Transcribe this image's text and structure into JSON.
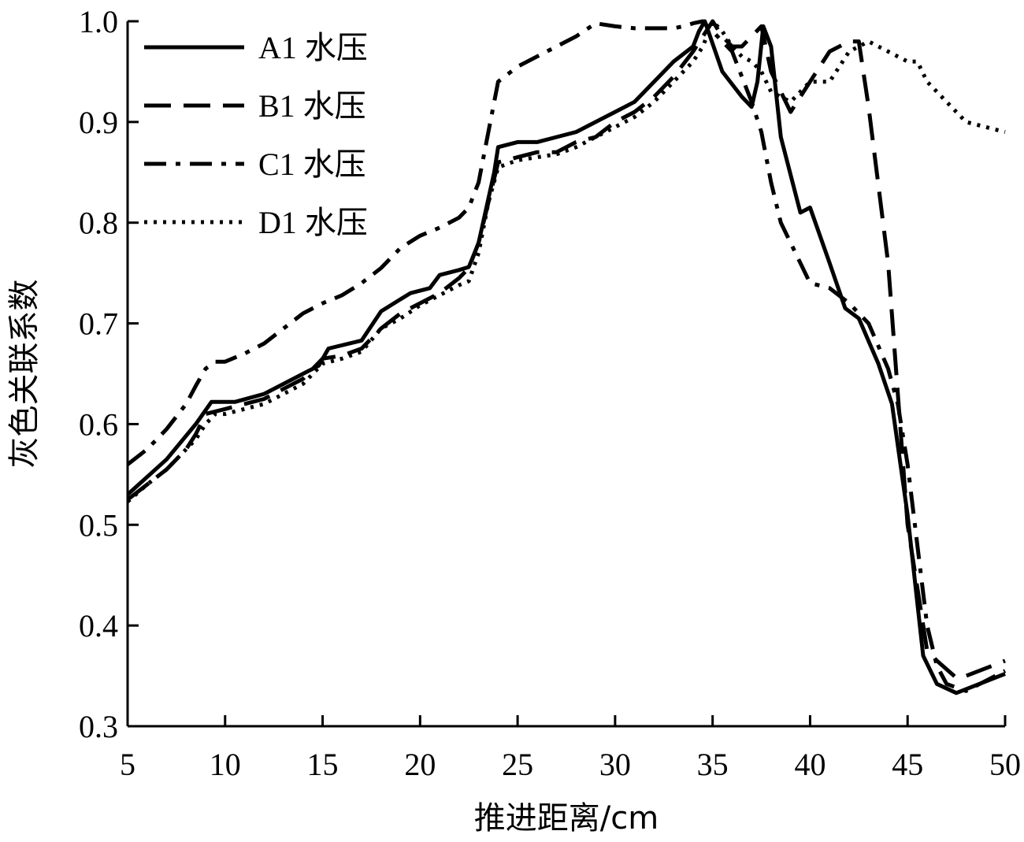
{
  "chart_data": {
    "type": "line",
    "title": "",
    "xlabel": "推进距离/cm",
    "ylabel": "灰色关联系数",
    "xlim": [
      5,
      50
    ],
    "ylim": [
      0.3,
      1.0
    ],
    "xticks": [
      5,
      10,
      15,
      20,
      25,
      30,
      35,
      40,
      45,
      50
    ],
    "yticks": [
      0.3,
      0.4,
      0.5,
      0.6,
      0.7,
      0.8,
      0.9,
      1.0
    ],
    "xtick_labels": [
      "5",
      "10",
      "15",
      "20",
      "25",
      "30",
      "35",
      "40",
      "45",
      "50"
    ],
    "ytick_labels": [
      "0.3",
      "0.4",
      "0.5",
      "0.6",
      "0.7",
      "0.8",
      "0.9",
      "1.0"
    ],
    "grid": false,
    "legend_position": "top-left",
    "series": [
      {
        "name": "A1 水压",
        "style": "solid",
        "x": [
          5,
          7,
          8.5,
          9.3,
          10.5,
          12,
          14,
          14.8,
          15.3,
          17,
          18,
          19.5,
          20.5,
          21,
          22,
          22.5,
          23,
          23.8,
          24,
          25,
          26,
          27,
          28,
          29,
          30,
          31,
          32,
          33,
          34,
          34.3,
          34.6,
          35.5,
          36.5,
          37,
          37.3,
          37.6,
          38,
          38.5,
          39.5,
          40,
          41,
          41.8,
          42.5,
          43.5,
          44.2,
          45,
          45.8,
          46.5,
          47.5,
          50
        ],
        "y": [
          0.53,
          0.565,
          0.6,
          0.622,
          0.622,
          0.63,
          0.65,
          0.658,
          0.675,
          0.683,
          0.712,
          0.73,
          0.735,
          0.748,
          0.753,
          0.756,
          0.78,
          0.85,
          0.875,
          0.88,
          0.88,
          0.885,
          0.89,
          0.9,
          0.91,
          0.92,
          0.94,
          0.96,
          0.975,
          0.99,
          1.0,
          0.95,
          0.925,
          0.915,
          0.94,
          0.995,
          0.975,
          0.885,
          0.81,
          0.815,
          0.76,
          0.715,
          0.705,
          0.66,
          0.62,
          0.51,
          0.37,
          0.342,
          0.333,
          0.352
        ]
      },
      {
        "name": "B1 水压",
        "style": "dashed",
        "x": [
          5,
          6,
          7,
          8,
          8.5,
          9,
          10,
          11,
          12,
          13,
          14,
          15,
          16,
          17,
          18,
          19,
          20,
          21,
          22,
          22.5,
          23,
          23.5,
          24,
          25,
          26,
          27,
          28,
          29,
          30,
          31,
          32,
          33,
          34,
          34.5,
          35,
          35.5,
          36,
          36.5,
          37,
          37.5,
          38,
          39,
          40,
          41,
          42,
          42.5,
          43,
          44,
          45,
          46,
          46.5,
          47.5,
          48,
          50
        ],
        "y": [
          0.525,
          0.54,
          0.555,
          0.575,
          0.59,
          0.61,
          0.615,
          0.62,
          0.625,
          0.635,
          0.645,
          0.665,
          0.668,
          0.675,
          0.695,
          0.71,
          0.72,
          0.73,
          0.745,
          0.755,
          0.78,
          0.82,
          0.86,
          0.865,
          0.87,
          0.87,
          0.88,
          0.885,
          0.9,
          0.91,
          0.925,
          0.945,
          0.97,
          0.985,
          1.0,
          0.985,
          0.975,
          0.975,
          0.985,
          0.995,
          0.95,
          0.91,
          0.94,
          0.97,
          0.98,
          0.98,
          0.915,
          0.76,
          0.5,
          0.375,
          0.365,
          0.348,
          0.35,
          0.365
        ]
      },
      {
        "name": "C1 水压",
        "style": "dash-dot",
        "x": [
          5,
          6,
          7,
          8,
          8.5,
          9,
          9.5,
          10,
          11,
          12,
          13,
          14,
          15,
          16,
          17,
          18,
          19,
          20,
          21,
          22,
          22.5,
          23,
          23.5,
          24,
          25,
          26,
          27,
          28,
          29,
          30,
          31,
          32,
          33,
          33.5,
          34,
          34.5,
          35,
          36,
          37,
          37.5,
          38,
          38.5,
          39,
          40,
          41,
          42,
          43,
          44,
          44.5,
          45,
          45.5,
          46,
          46.5,
          47,
          48,
          50
        ],
        "y": [
          0.56,
          0.575,
          0.595,
          0.62,
          0.638,
          0.655,
          0.662,
          0.662,
          0.67,
          0.68,
          0.695,
          0.71,
          0.72,
          0.728,
          0.74,
          0.755,
          0.775,
          0.787,
          0.795,
          0.805,
          0.815,
          0.84,
          0.89,
          0.94,
          0.955,
          0.965,
          0.975,
          0.985,
          0.998,
          0.995,
          0.993,
          0.993,
          0.993,
          0.995,
          0.998,
          1.0,
          0.99,
          0.97,
          0.92,
          0.89,
          0.84,
          0.8,
          0.78,
          0.74,
          0.735,
          0.72,
          0.7,
          0.655,
          0.62,
          0.56,
          0.48,
          0.4,
          0.36,
          0.342,
          0.335,
          0.355
        ]
      },
      {
        "name": "D1 水压",
        "style": "dotted",
        "x": [
          5,
          6,
          7,
          8,
          8.5,
          9,
          9.5,
          10,
          11,
          12,
          13,
          14,
          15,
          16,
          17,
          18,
          19,
          20,
          21,
          22,
          22.5,
          23,
          23.5,
          24,
          25,
          26,
          27,
          28,
          29,
          30,
          31,
          32,
          33,
          34,
          34.5,
          35,
          35.5,
          36,
          36.5,
          37,
          37.5,
          38,
          38.5,
          39,
          40,
          41,
          42,
          43,
          44,
          45,
          45.5,
          46,
          46.5,
          47,
          47.5,
          48,
          50
        ],
        "y": [
          0.523,
          0.54,
          0.555,
          0.575,
          0.585,
          0.6,
          0.61,
          0.61,
          0.615,
          0.62,
          0.63,
          0.64,
          0.66,
          0.665,
          0.672,
          0.695,
          0.705,
          0.718,
          0.728,
          0.738,
          0.742,
          0.77,
          0.82,
          0.855,
          0.862,
          0.865,
          0.868,
          0.875,
          0.885,
          0.895,
          0.905,
          0.92,
          0.94,
          0.96,
          0.975,
          1.0,
          0.99,
          0.975,
          0.965,
          0.96,
          0.95,
          0.93,
          0.925,
          0.92,
          0.94,
          0.94,
          0.97,
          0.98,
          0.97,
          0.96,
          0.96,
          0.94,
          0.93,
          0.92,
          0.91,
          0.9,
          0.89
        ]
      }
    ]
  }
}
